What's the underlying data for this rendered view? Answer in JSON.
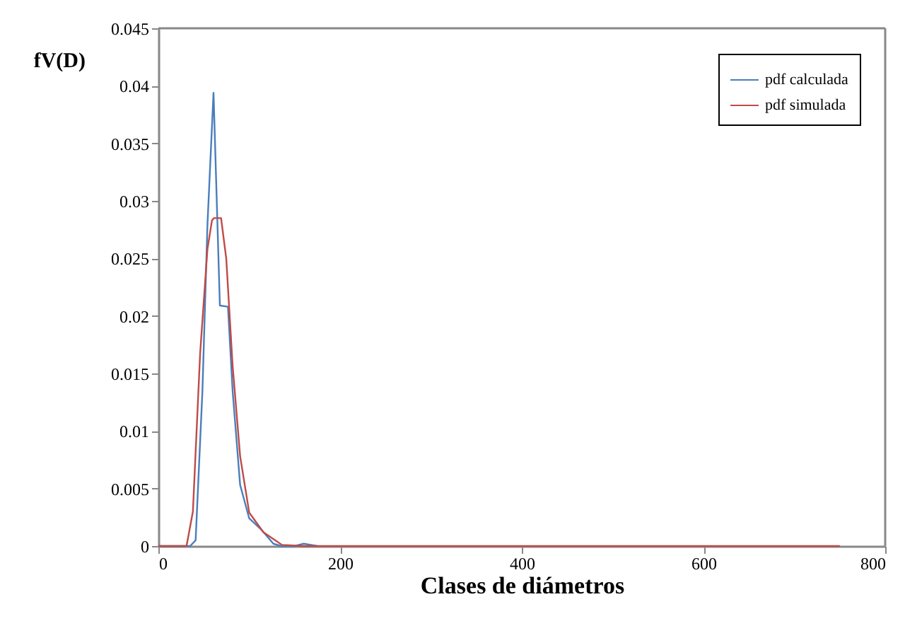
{
  "chart_data": {
    "type": "line",
    "xlabel": "Clases de diámetros",
    "ylabel": "fV(D)",
    "xlim": [
      0,
      800
    ],
    "xticks": [
      0,
      200,
      400,
      600,
      800
    ],
    "ylim": [
      0,
      0.045
    ],
    "yticks": [
      0,
      0.005,
      0.01,
      0.015,
      0.02,
      0.025,
      0.03,
      0.035,
      0.04,
      0.045
    ],
    "grid": false,
    "legend": "top right",
    "marker": "none",
    "line_style": "solid",
    "series": [
      {
        "name": "pdf calculada",
        "color": "#4a7ebb",
        "x": [
          0,
          35,
          41,
          48.5,
          54,
          60.7,
          67.7,
          76.6,
          81.7,
          90,
          100,
          113.6,
          126.6,
          135,
          150,
          160,
          175
        ],
        "values": [
          0,
          0,
          0.0005,
          0.0135,
          0.0279,
          0.0394,
          0.0209,
          0.0208,
          0.0135,
          0.0053,
          0.0024,
          0.0014,
          0.0002,
          0,
          0,
          0.0002,
          0
        ]
      },
      {
        "name": "pdf simulada",
        "color": "#be4b48",
        "x": [
          0,
          31,
          38,
          46,
          54,
          59,
          61,
          69,
          74.7,
          81.7,
          90,
          100,
          115.6,
          136,
          160,
          400,
          750
        ],
        "values": [
          0,
          0,
          0.003,
          0.0168,
          0.0258,
          0.0283,
          0.0285,
          0.0285,
          0.025,
          0.0157,
          0.0078,
          0.0029,
          0.0012,
          0.0001,
          0,
          0,
          0
        ]
      }
    ]
  }
}
